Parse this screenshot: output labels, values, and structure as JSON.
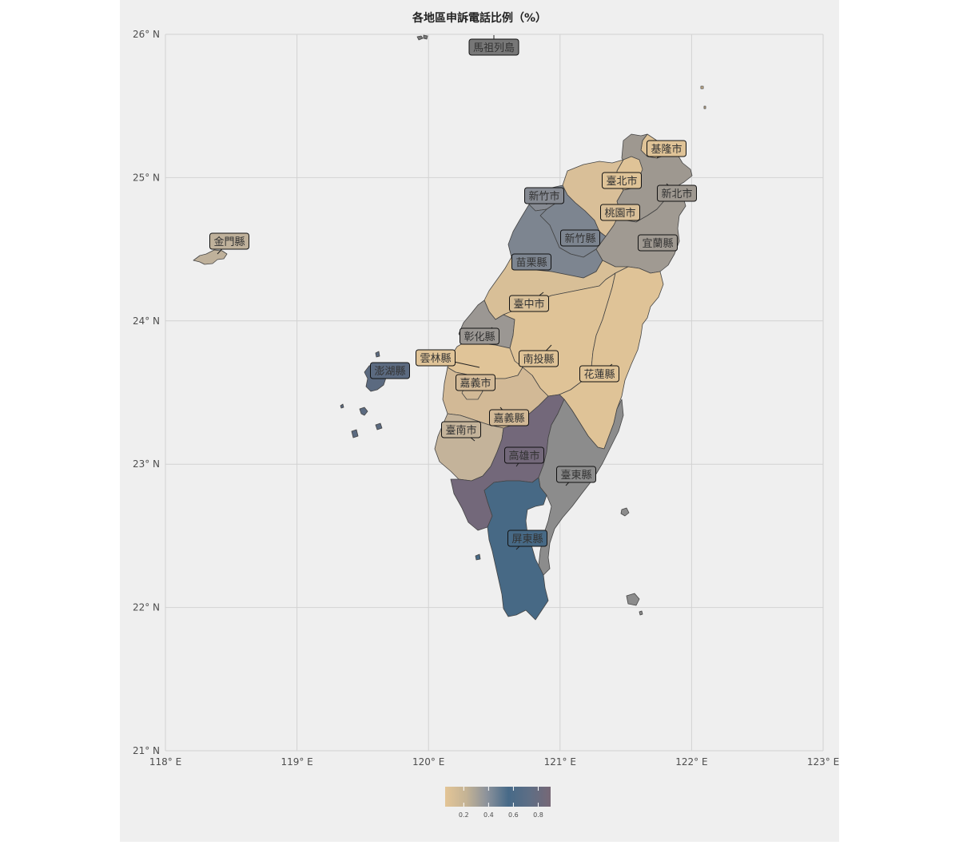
{
  "title": "各地區申訴電話比例（%）",
  "lat_ticks": [
    {
      "value": 26,
      "label": "26° N"
    },
    {
      "value": 25,
      "label": "25° N"
    },
    {
      "value": 24,
      "label": "24° N"
    },
    {
      "value": 23,
      "label": "23° N"
    },
    {
      "value": 22,
      "label": "22° N"
    },
    {
      "value": 21,
      "label": "21° N"
    }
  ],
  "lon_ticks": [
    {
      "value": 118,
      "label": "118° E"
    },
    {
      "value": 119,
      "label": "119° E"
    },
    {
      "value": 120,
      "label": "120° E"
    },
    {
      "value": 121,
      "label": "121° E"
    },
    {
      "value": 122,
      "label": "122° E"
    },
    {
      "value": 123,
      "label": "123° E"
    }
  ],
  "grid": true,
  "legend": {
    "position": "bottom",
    "gradient": [
      "#e3c596",
      "#c4b395",
      "#8a919b",
      "#476a88",
      "#5e6e85",
      "#776876"
    ],
    "range": [
      0.05,
      0.9
    ],
    "ticks": [
      {
        "value": 0.2,
        "label": "0.2"
      },
      {
        "value": 0.4,
        "label": "0.4"
      },
      {
        "value": 0.6,
        "label": "0.6"
      },
      {
        "value": 0.8,
        "label": "0.8"
      }
    ]
  },
  "regions": [
    {
      "name": "馬祖列島",
      "color": "#777777"
    },
    {
      "name": "基隆市",
      "color": "#dfc397"
    },
    {
      "name": "臺北市",
      "color": "#dfc397"
    },
    {
      "name": "新北市",
      "color": "#9e9890"
    },
    {
      "name": "新竹市",
      "color": "#868a92"
    },
    {
      "name": "桃園市",
      "color": "#d9bf98"
    },
    {
      "name": "金門縣",
      "color": "#bfb19b"
    },
    {
      "name": "新竹縣",
      "color": "#7d8590"
    },
    {
      "name": "宜蘭縣",
      "color": "#a09a92"
    },
    {
      "name": "苗栗縣",
      "color": "#7d8590"
    },
    {
      "name": "臺中市",
      "color": "#d8bf97"
    },
    {
      "name": "彰化縣",
      "color": "#9b9793"
    },
    {
      "name": "雲林縣",
      "color": "#e0c498"
    },
    {
      "name": "南投縣",
      "color": "#dfc397"
    },
    {
      "name": "澎湖縣",
      "color": "#5b6a80"
    },
    {
      "name": "花蓮縣",
      "color": "#dfc397"
    },
    {
      "name": "嘉義市",
      "color": "#d2b996"
    },
    {
      "name": "嘉義縣",
      "color": "#d2b996"
    },
    {
      "name": "臺南市",
      "color": "#c4b39a"
    },
    {
      "name": "高雄市",
      "color": "#73687a"
    },
    {
      "name": "臺東縣",
      "color": "#8c8c8c"
    },
    {
      "name": "屏東縣",
      "color": "#476985"
    }
  ]
}
